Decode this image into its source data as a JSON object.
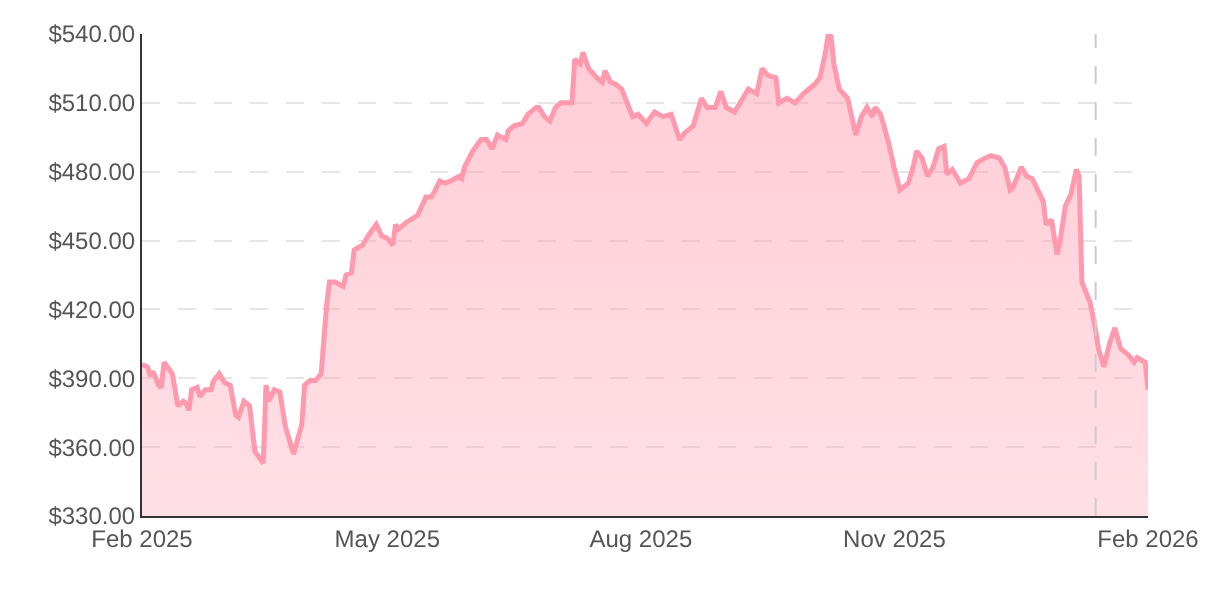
{
  "chart_data": {
    "type": "area",
    "series": [
      {
        "color": "#ff99ad",
        "x": [
          "2025-02-01",
          "2025-02-03",
          "2025-02-04",
          "2025-02-05",
          "2025-02-07",
          "2025-02-08",
          "2025-02-09",
          "2025-02-12",
          "2025-02-14",
          "2025-02-16",
          "2025-02-17",
          "2025-02-18",
          "2025-02-19",
          "2025-02-21",
          "2025-02-22",
          "2025-02-24",
          "2025-02-26",
          "2025-02-27",
          "2025-03-01",
          "2025-03-03",
          "2025-03-05",
          "2025-03-07",
          "2025-03-08",
          "2025-03-10",
          "2025-03-12",
          "2025-03-14",
          "2025-03-17",
          "2025-03-18",
          "2025-03-19",
          "2025-03-21",
          "2025-03-23",
          "2025-03-25",
          "2025-03-28",
          "2025-03-31",
          "2025-04-01",
          "2025-04-03",
          "2025-04-05",
          "2025-04-07",
          "2025-04-09",
          "2025-04-10",
          "2025-04-12",
          "2025-04-15",
          "2025-04-16",
          "2025-04-18",
          "2025-04-19",
          "2025-04-22",
          "2025-04-24",
          "2025-04-27",
          "2025-04-29",
          "2025-05-01",
          "2025-05-03",
          "2025-05-04",
          "2025-05-05",
          "2025-05-08",
          "2025-05-12",
          "2025-05-15",
          "2025-05-17",
          "2025-05-18",
          "2025-05-20",
          "2025-05-22",
          "2025-05-24",
          "2025-05-27",
          "2025-05-28",
          "2025-05-29",
          "2025-06-01",
          "2025-06-04",
          "2025-06-06",
          "2025-06-08",
          "2025-06-10",
          "2025-06-13",
          "2025-06-14",
          "2025-06-16",
          "2025-06-19",
          "2025-06-21",
          "2025-06-24",
          "2025-06-25",
          "2025-06-27",
          "2025-06-29",
          "2025-07-01",
          "2025-07-03",
          "2025-07-05",
          "2025-07-07",
          "2025-07-08",
          "2025-07-10",
          "2025-07-11",
          "2025-07-13",
          "2025-07-16",
          "2025-07-18",
          "2025-07-19",
          "2025-07-21",
          "2025-07-23",
          "2025-07-25",
          "2025-07-29",
          "2025-07-31",
          "2025-08-03",
          "2025-08-06",
          "2025-08-09",
          "2025-08-12",
          "2025-08-15",
          "2025-08-17",
          "2025-08-20",
          "2025-08-23",
          "2025-08-25",
          "2025-08-28",
          "2025-08-30",
          "2025-09-01",
          "2025-09-04",
          "2025-09-06",
          "2025-09-09",
          "2025-09-12",
          "2025-09-14",
          "2025-09-16",
          "2025-09-19",
          "2025-09-20",
          "2025-09-23",
          "2025-09-26",
          "2025-09-29",
          "2025-10-03",
          "2025-10-05",
          "2025-10-07",
          "2025-10-08",
          "2025-10-09",
          "2025-10-10",
          "2025-10-12",
          "2025-10-15",
          "2025-10-18",
          "2025-10-20",
          "2025-10-22",
          "2025-10-24",
          "2025-10-25",
          "2025-10-27",
          "2025-10-30",
          "2025-11-01",
          "2025-11-03",
          "2025-11-06",
          "2025-11-08",
          "2025-11-09",
          "2025-11-11",
          "2025-11-13",
          "2025-11-15",
          "2025-11-17",
          "2025-11-19",
          "2025-11-20",
          "2025-11-22",
          "2025-11-25",
          "2025-11-28",
          "2025-12-01",
          "2025-12-04",
          "2025-12-06",
          "2025-12-09",
          "2025-12-11",
          "2025-12-13",
          "2025-12-14",
          "2025-12-17",
          "2025-12-19",
          "2025-12-21",
          "2025-12-25",
          "2025-12-26",
          "2025-12-28",
          "2025-12-30",
          "2025-12-31",
          "2026-01-02",
          "2026-01-04",
          "2026-01-06",
          "2026-01-07",
          "2026-01-08",
          "2026-01-11",
          "2026-01-13",
          "2026-01-14",
          "2026-01-16",
          "2026-01-18",
          "2026-01-20",
          "2026-01-22",
          "2026-01-25",
          "2026-01-27",
          "2026-01-28",
          "2026-01-31",
          "2026-02-01"
        ],
        "values": [
          396,
          395,
          391,
          393,
          387,
          386,
          397,
          392,
          378,
          380,
          379,
          376,
          385,
          386,
          382,
          385,
          385,
          389,
          392,
          388,
          387,
          374,
          373,
          380,
          378,
          358,
          353,
          387,
          380,
          385,
          384,
          369,
          357,
          370,
          387,
          389,
          389,
          392,
          422,
          432,
          432,
          430,
          435,
          436,
          446,
          448,
          452,
          457,
          452,
          451,
          448,
          457,
          455,
          458,
          461,
          469,
          469,
          471,
          476,
          475,
          476,
          478,
          477,
          482,
          489,
          494,
          494,
          490,
          496,
          494,
          498,
          500,
          501,
          505,
          508,
          508,
          504,
          502,
          508,
          510,
          510,
          510,
          529,
          527,
          532,
          525,
          521,
          519,
          524,
          519,
          518,
          516,
          504,
          505,
          501,
          506,
          504,
          505,
          494,
          497,
          500,
          512,
          508,
          508,
          515,
          508,
          506,
          510,
          516,
          514,
          525,
          522,
          521,
          510,
          512,
          510,
          514,
          518,
          521,
          532,
          540,
          539,
          527,
          516,
          512,
          496,
          504,
          508,
          504,
          508,
          505,
          492,
          481,
          472,
          475,
          483,
          489,
          486,
          478,
          482,
          490,
          491,
          479,
          481,
          475,
          477,
          484,
          486,
          487,
          486,
          482,
          472,
          473,
          482,
          478,
          477,
          467,
          457,
          459,
          444,
          449,
          465,
          470,
          481,
          478,
          432,
          423,
          411,
          403,
          395,
          405,
          412,
          403,
          400,
          397,
          399,
          397,
          385
        ]
      }
    ],
    "xlim": [
      "2025-02-01",
      "2026-02-01"
    ],
    "xticks": [
      {
        "value": "2025-02-01",
        "label": "Feb 2025"
      },
      {
        "value": "2025-05-01",
        "label": "May 2025"
      },
      {
        "value": "2025-08-01",
        "label": "Aug 2025"
      },
      {
        "value": "2025-11-01",
        "label": "Nov 2025"
      },
      {
        "value": "2026-02-01",
        "label": "Feb 2026"
      }
    ],
    "ylim": [
      330,
      540
    ],
    "yticks": [
      {
        "value": 330,
        "label": "$330.00"
      },
      {
        "value": 360,
        "label": "$360.00"
      },
      {
        "value": 390,
        "label": "$390.00"
      },
      {
        "value": 420,
        "label": "$420.00"
      },
      {
        "value": 450,
        "label": "$450.00"
      },
      {
        "value": 480,
        "label": "$480.00"
      },
      {
        "value": 510,
        "label": "$510.00"
      },
      {
        "value": 540,
        "label": "$540.00"
      }
    ],
    "grid": "y",
    "ref_lines": [
      {
        "axis": "x",
        "value": "2026-01-13",
        "color": "#cccccc",
        "line_style": "dashed"
      }
    ]
  }
}
